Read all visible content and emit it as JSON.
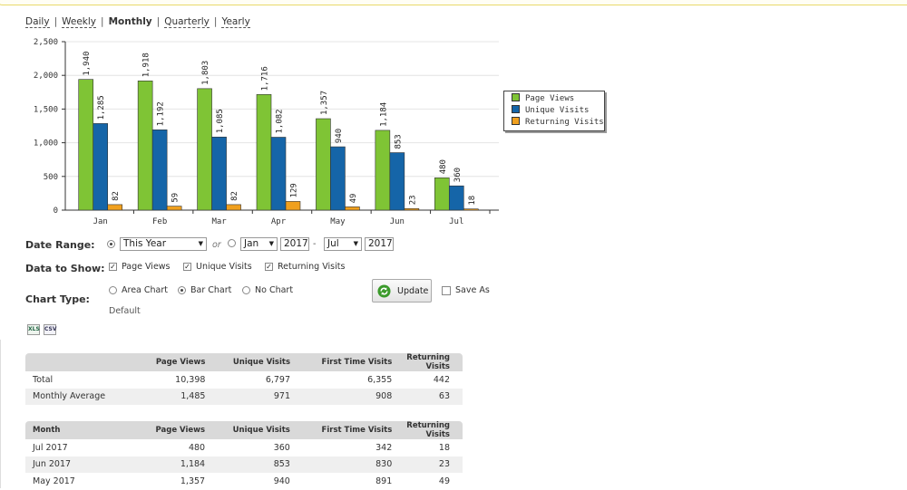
{
  "periods": [
    {
      "label": "Daily",
      "active": false
    },
    {
      "label": "Weekly",
      "active": false
    },
    {
      "label": "Monthly",
      "active": true
    },
    {
      "label": "Quarterly",
      "active": false
    },
    {
      "label": "Yearly",
      "active": false
    }
  ],
  "chart_data": {
    "type": "bar",
    "categories": [
      "Jan",
      "Feb",
      "Mar",
      "Apr",
      "May",
      "Jun",
      "Jul"
    ],
    "series": [
      {
        "name": "Page Views",
        "color": "#7fc435",
        "values": [
          1940,
          1918,
          1803,
          1716,
          1357,
          1184,
          480
        ]
      },
      {
        "name": "Unique Visits",
        "color": "#1565a8",
        "values": [
          1285,
          1192,
          1085,
          1082,
          940,
          853,
          360
        ]
      },
      {
        "name": "Returning Visits",
        "color": "#f0a01e",
        "values": [
          82,
          59,
          82,
          129,
          49,
          23,
          18
        ]
      }
    ],
    "ylim": [
      0,
      2500
    ],
    "yticks": [
      0,
      500,
      1000,
      1500,
      2000,
      2500
    ],
    "ytick_labels": [
      "0",
      "500",
      "1,000",
      "1,500",
      "2,000",
      "2,500"
    ],
    "legend_position": "right",
    "grid": true
  },
  "legend": {
    "items": [
      {
        "label": "Page Views",
        "color": "#7fc435"
      },
      {
        "label": "Unique Visits",
        "color": "#1565a8"
      },
      {
        "label": "Returning Visits",
        "color": "#f0a01e"
      }
    ]
  },
  "form": {
    "date_range_label": "Date Range:",
    "date_range_value": "This Year",
    "or_text": "or",
    "from_month": "Jan",
    "from_year": "2017",
    "dash": "-",
    "to_month": "Jul",
    "to_year": "2017",
    "data_to_show_label": "Data to Show:",
    "show_page_views": "Page Views",
    "show_unique_visits": "Unique Visits",
    "show_returning_visits": "Returning Visits",
    "chart_type_label": "Chart Type:",
    "area_chart": "Area Chart",
    "bar_chart": "Bar Chart",
    "no_chart": "No Chart",
    "default_text": "Default",
    "update_label": "Update",
    "save_as_label": "Save As",
    "export_xls": "XLS",
    "export_csv": "CSV"
  },
  "summary_table": {
    "headers": [
      "",
      "Page Views",
      "Unique Visits",
      "First Time Visits",
      "Returning Visits"
    ],
    "rows": [
      [
        "Total",
        "10,398",
        "6,797",
        "6,355",
        "442"
      ],
      [
        "Monthly Average",
        "1,485",
        "971",
        "908",
        "63"
      ]
    ]
  },
  "month_table": {
    "headers": [
      "Month",
      "Page Views",
      "Unique Visits",
      "First Time Visits",
      "Returning Visits"
    ],
    "rows": [
      [
        "Jul 2017",
        "480",
        "360",
        "342",
        "18"
      ],
      [
        "Jun 2017",
        "1,184",
        "853",
        "830",
        "23"
      ],
      [
        "May 2017",
        "1,357",
        "940",
        "891",
        "49"
      ]
    ]
  }
}
